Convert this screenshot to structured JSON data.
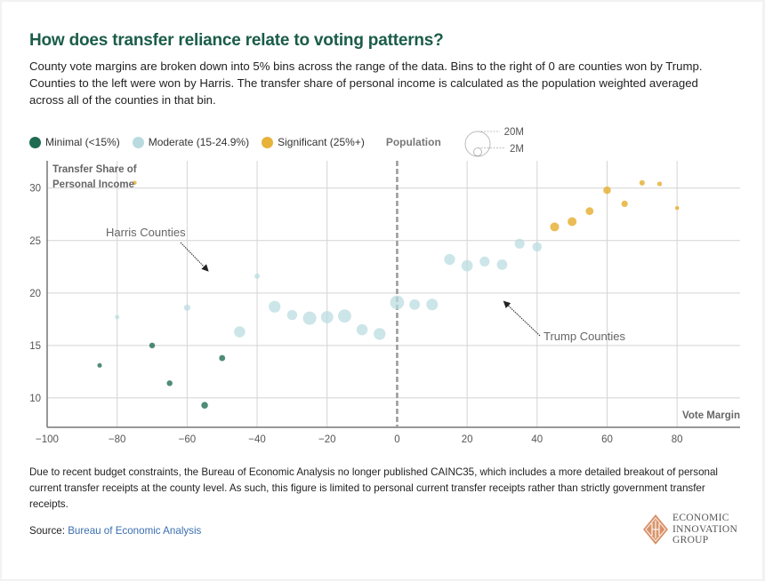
{
  "header": {
    "title": "How does transfer reliance relate to voting patterns?",
    "subtitle": "County vote margins are broken down into 5% bins across the range of the data. Bins to the right of 0 are counties won by Trump. Counties to the left were won by Harris. The transfer share of personal income is calculated as the population weighted averaged across all of the counties in that bin."
  },
  "legend": {
    "items": [
      {
        "label": "Minimal (<15%)",
        "color": "#1e6b52"
      },
      {
        "label": "Moderate (15-24.9%)",
        "color": "#b9dbe0"
      },
      {
        "label": "Significant (25%+)",
        "color": "#e6b23a"
      }
    ],
    "population_label": "Population",
    "population_large": "20M",
    "population_small": "2M"
  },
  "chart_data": {
    "type": "scatter",
    "title": "How does transfer reliance relate to voting patterns?",
    "xlabel": "Vote Margin",
    "ylabel": "Transfer Share of Personal Income",
    "xlim": [
      -100,
      98
    ],
    "ylim": [
      7.2,
      32.6
    ],
    "x_ticks": [
      -100,
      -80,
      -60,
      -40,
      -20,
      0,
      20,
      40,
      60,
      80
    ],
    "x_tick_labels": [
      "−100",
      "−80",
      "−60",
      "−40",
      "−20",
      "0",
      "20",
      "40",
      "60",
      "80"
    ],
    "y_ticks": [
      10,
      15,
      20,
      25,
      30
    ],
    "y_tick_labels": [
      "10",
      "15",
      "20",
      "25",
      "30"
    ],
    "grid": true,
    "reference_line_x": 0,
    "legend_placement": "top-left",
    "size_variable": "Population",
    "series": [
      {
        "name": "Minimal (<15%)",
        "color": "#1e6b52",
        "points": [
          {
            "x": -85,
            "y": 13.1,
            "pop_m": 0.3
          },
          {
            "x": -70,
            "y": 15.0,
            "pop_m": 0.6
          },
          {
            "x": -65,
            "y": 11.4,
            "pop_m": 0.6
          },
          {
            "x": -55,
            "y": 9.3,
            "pop_m": 0.9
          },
          {
            "x": -50,
            "y": 13.8,
            "pop_m": 0.7
          }
        ]
      },
      {
        "name": "Moderate (15-24.9%)",
        "color": "#b9dbe0",
        "points": [
          {
            "x": -80,
            "y": 17.7,
            "pop_m": 0.3
          },
          {
            "x": -60,
            "y": 18.6,
            "pop_m": 0.8
          },
          {
            "x": -45,
            "y": 16.3,
            "pop_m": 3.0
          },
          {
            "x": -40,
            "y": 21.6,
            "pop_m": 0.5
          },
          {
            "x": -35,
            "y": 18.7,
            "pop_m": 3.4
          },
          {
            "x": -30,
            "y": 17.9,
            "pop_m": 2.4
          },
          {
            "x": -25,
            "y": 17.6,
            "pop_m": 4.5
          },
          {
            "x": -20,
            "y": 17.7,
            "pop_m": 3.7
          },
          {
            "x": -15,
            "y": 17.8,
            "pop_m": 4.4
          },
          {
            "x": -10,
            "y": 16.5,
            "pop_m": 3.0
          },
          {
            "x": -5,
            "y": 16.1,
            "pop_m": 3.5
          },
          {
            "x": 0,
            "y": 19.1,
            "pop_m": 5.0
          },
          {
            "x": 5,
            "y": 18.9,
            "pop_m": 2.7
          },
          {
            "x": 10,
            "y": 18.9,
            "pop_m": 3.3
          },
          {
            "x": 15,
            "y": 23.2,
            "pop_m": 2.9
          },
          {
            "x": 20,
            "y": 22.6,
            "pop_m": 3.1
          },
          {
            "x": 25,
            "y": 23.0,
            "pop_m": 2.3
          },
          {
            "x": 30,
            "y": 22.7,
            "pop_m": 2.6
          },
          {
            "x": 35,
            "y": 24.7,
            "pop_m": 2.3
          },
          {
            "x": 40,
            "y": 24.4,
            "pop_m": 2.0
          }
        ]
      },
      {
        "name": "Significant (25%+)",
        "color": "#e6b23a",
        "points": [
          {
            "x": -75,
            "y": 30.5,
            "pop_m": 0.05
          },
          {
            "x": 45,
            "y": 26.3,
            "pop_m": 1.8
          },
          {
            "x": 50,
            "y": 26.8,
            "pop_m": 1.8
          },
          {
            "x": 55,
            "y": 27.8,
            "pop_m": 1.3
          },
          {
            "x": 60,
            "y": 29.8,
            "pop_m": 1.2
          },
          {
            "x": 65,
            "y": 28.5,
            "pop_m": 0.8
          },
          {
            "x": 70,
            "y": 30.5,
            "pop_m": 0.5
          },
          {
            "x": 75,
            "y": 30.4,
            "pop_m": 0.35
          },
          {
            "x": 80,
            "y": 28.1,
            "pop_m": 0.15
          }
        ]
      }
    ],
    "annotations": [
      {
        "text": "Harris Counties",
        "arrow_to": {
          "x": -54,
          "y": 22.1
        }
      },
      {
        "text": "Trump Counties",
        "arrow_to": {
          "x": 30.5,
          "y": 19.2
        }
      }
    ]
  },
  "footer": {
    "note": "Due to recent budget constraints, the Bureau of Economic Analysis no longer published CAINC35, which includes a more detailed breakout of personal current transfer receipts at the county level. As such, this figure is limited to personal current transfer receipts rather than strictly government transfer receipts.",
    "source_prefix": "Source:",
    "source_link": "Bureau of Economic Analysis",
    "logo_line1": "ECONOMIC",
    "logo_line2": "INNOVATION",
    "logo_line3": "GROUP"
  }
}
